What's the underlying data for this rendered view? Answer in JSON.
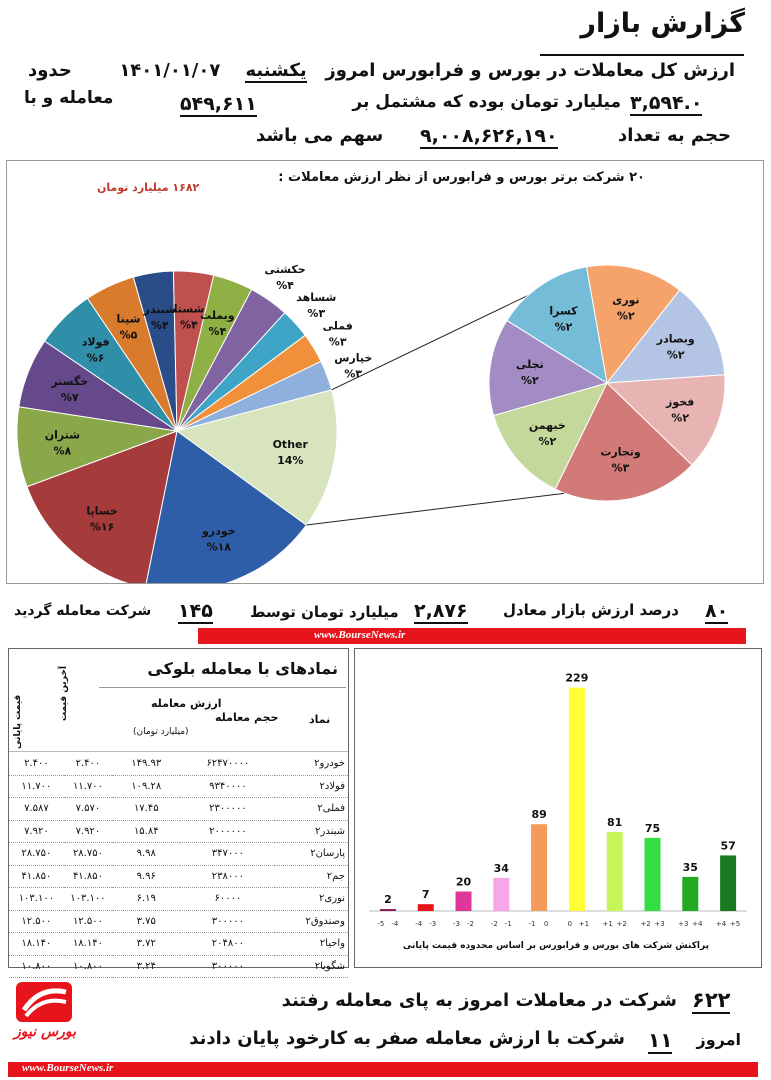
{
  "header": {
    "title": "گزارش بازار",
    "line1": {
      "label": "ارزش کل معاملات در بورس و فرابورس امروز",
      "day": "یکشنبه",
      "date": "۱۴۰۱/۰۱/۰۷",
      "suffix": "حدود"
    },
    "line2": {
      "value": "۳,۵۹۴.۰",
      "text": "میلیارد تومان بوده که مشتمل بر",
      "count": "۵۴۹,۶۱۱",
      "tail": "معامله و با"
    },
    "line3": {
      "label": "حجم به تعداد",
      "volume": "۹,۰۰۸,۶۲۶,۱۹۰",
      "tail": "سهم می باشد"
    }
  },
  "pie_section": {
    "title": "۲۰ شرکت برتر بورس و فرابورس از نظر ارزش معاملات :",
    "title_value": "۱۶۸۲ میلیارد تومان"
  },
  "chart_data": [
    {
      "type": "pie",
      "title": "۲۰ شرکت برتر بورس و فرابورس از نظر ارزش معاملات :",
      "labels": [
        "خودرو",
        "خساپا",
        "شتران",
        "خگستر",
        "فولاد",
        "شپنا",
        "شبندر",
        "شستا",
        "وبملت",
        "حکشتی",
        "شساهد",
        "فملی",
        "خپارس",
        "Other"
      ],
      "values": [
        18,
        16,
        8,
        7,
        6,
        5,
        4,
        4,
        4,
        4,
        3,
        3,
        3,
        14
      ],
      "value_labels": [
        "%۱۸",
        "%۱۶",
        "%۸",
        "%۷",
        "%۶",
        "%۵",
        "%۴",
        "%۴",
        "%۴",
        "%۴",
        "%۳",
        "%۳",
        "%۳",
        "14%"
      ],
      "colors": [
        "#2e5ea8",
        "#a63b3b",
        "#8aa84a",
        "#65498a",
        "#2f8ea8",
        "#d97b2c",
        "#2a4d8a",
        "#c0504d",
        "#8fb045",
        "#8064a2",
        "#3ea5c6",
        "#f0903a",
        "#8fb0dc",
        "#d8e4be"
      ]
    },
    {
      "type": "pie",
      "labels": [
        "نوری",
        "وبصادر",
        "فخوز",
        "وتجارت",
        "خبهمن",
        "تجلی",
        "کسرا"
      ],
      "values": [
        2,
        2,
        2,
        3,
        2,
        2,
        2
      ],
      "value_labels": [
        "%۲",
        "%۲",
        "%۲",
        "%۳",
        "%۲",
        "%۲",
        "%۲"
      ],
      "colors": [
        "#f5a36b",
        "#b4c4e4",
        "#e8b4b3",
        "#d17a78",
        "#c4d89c",
        "#a38cc4",
        "#74bcd8"
      ]
    },
    {
      "type": "bar",
      "categories": [
        "-5 -4",
        "-4 -3",
        "-3 -2",
        "-2 -1",
        "-1 0",
        "0 +1",
        "+1 +2",
        "+2 +3",
        "+3 +4",
        "+4 +5"
      ],
      "category_labels": [
        [
          "-5",
          "-4"
        ],
        [
          "-4",
          "-3"
        ],
        [
          "-3",
          "-2"
        ],
        [
          "-2",
          "-1"
        ],
        [
          "-1",
          "0"
        ],
        [
          "0",
          "+1"
        ],
        [
          "+1",
          "+2"
        ],
        [
          "+2",
          "+3"
        ],
        [
          "+3",
          "+4"
        ],
        [
          "+4",
          "+5"
        ]
      ],
      "values": [
        2,
        7,
        20,
        34,
        89,
        229,
        81,
        75,
        35,
        57
      ],
      "colors": [
        "#8b1a5e",
        "#e8141c",
        "#e0359a",
        "#f7a6e8",
        "#f59a5a",
        "#ffff33",
        "#c6f55a",
        "#33dd44",
        "#22aa22",
        "#1a7a22"
      ],
      "xlabel": "پراکنش شرکت های بورس و فرابورس بر اساس محدوده قیمت پایانی",
      "ylim": [
        0,
        240
      ]
    }
  ],
  "market": {
    "percent": "۸۰",
    "percent_text": "درصد ارزش بازار معادل",
    "value": "۲,۸۷۶",
    "value_text": "میلیارد تومان توسط",
    "companies": "۱۴۵",
    "companies_text": "شرکت معامله گردید",
    "site": "www.BourseNews.ir"
  },
  "block_table": {
    "title": "نمادهای با معامله بلوکی",
    "headers": [
      "نماد",
      "حجم معامله",
      "ارزش معامله",
      "آخرین قیمت",
      "قیمت پایانی"
    ],
    "value_sub": "(میلیارد تومان)",
    "rows": [
      [
        "خودرو۲",
        "۶۲۴۷۰۰۰۰",
        "۱۴۹.۹۳",
        "۲.۴۰۰",
        "۲.۴۰۰"
      ],
      [
        "فولاد۲",
        "۹۳۴۰۰۰۰",
        "۱۰۹.۲۸",
        "۱۱.۷۰۰",
        "۱۱.۷۰۰"
      ],
      [
        "فملی۲",
        "۲۳۰۰۰۰۰",
        "۱۷.۴۵",
        "۷.۵۷۰",
        "۷.۵۸۷"
      ],
      [
        "شبندر۲",
        "۲۰۰۰۰۰۰",
        "۱۵.۸۴",
        "۷.۹۲۰",
        "۷.۹۲۰"
      ],
      [
        "پارسان۲",
        "۳۴۷۰۰۰",
        "۹.۹۸",
        "۲۸.۷۵۰",
        "۲۸.۷۵۰"
      ],
      [
        "جم۲",
        "۲۳۸۰۰۰",
        "۹.۹۶",
        "۴۱.۸۵۰",
        "۴۱.۸۵۰"
      ],
      [
        "نوری۲",
        "۶۰۰۰۰",
        "۶.۱۹",
        "۱۰۳.۱۰۰",
        "۱۰۳.۱۰۰"
      ],
      [
        "وصندوق۲",
        "۳۰۰۰۰۰",
        "۳.۷۵",
        "۱۲.۵۰۰",
        "۱۲.۵۰۰"
      ],
      [
        "واحیا۲",
        "۲۰۴۸۰۰",
        "۳.۷۲",
        "۱۸.۱۴۰",
        "۱۸.۱۴۰"
      ],
      [
        "شگویا۲",
        "۳۰۰۰۰۰",
        "۳.۲۴",
        "۱۰.۸۰۰",
        "۱۰.۸۰۰"
      ]
    ]
  },
  "footer": {
    "count1": "۶۲۲",
    "text1": "شرکت در معاملات امروز به پای معامله رفتند",
    "prefix2": "امروز",
    "count2": "۱۱",
    "text2": "شرکت با ارزش معامله صفر به کارخود پایان دادند",
    "logo_text": "بورس نیوز",
    "site": "www.BourseNews.ir"
  }
}
